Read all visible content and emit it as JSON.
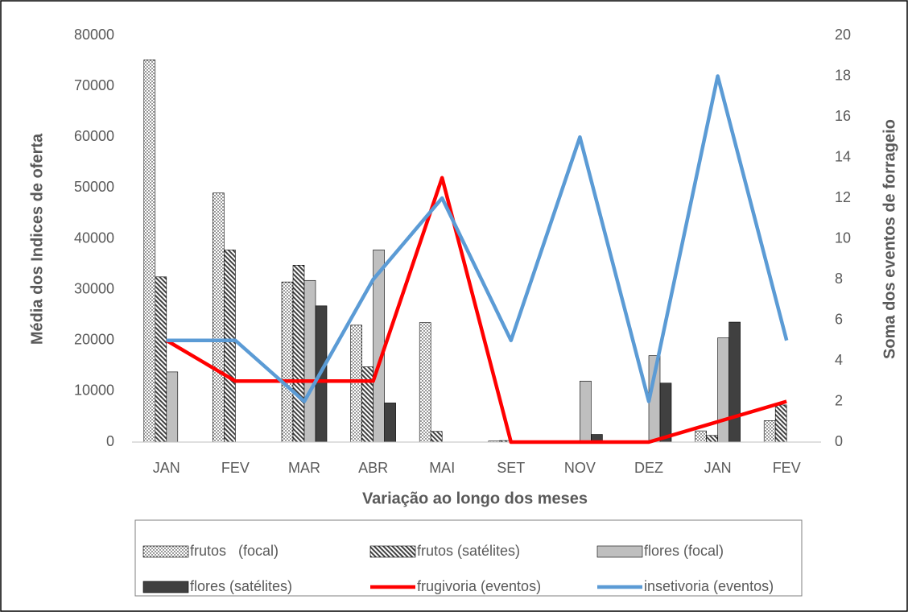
{
  "chart_data": {
    "type": "bar-line",
    "x_label": "Variação ao longo dos meses",
    "y_label": "Média dos Indices de oferta",
    "y2_label": "Soma dos eventos de forrageio",
    "categories": [
      "JAN",
      "FEV",
      "MAR",
      "ABR",
      "MAI",
      "SET",
      "NOV",
      "DEZ",
      "JAN",
      "FEV"
    ],
    "ylim": [
      0,
      80000
    ],
    "yticks": [
      0,
      10000,
      20000,
      30000,
      40000,
      50000,
      60000,
      70000,
      80000
    ],
    "y2lim": [
      0,
      20
    ],
    "y2ticks": [
      0,
      2,
      4,
      6,
      8,
      10,
      12,
      14,
      16,
      18,
      20
    ],
    "grid": false,
    "series": [
      {
        "name": "frutos   (focal)",
        "type": "bar",
        "pattern": "dots",
        "color": "#ffffff",
        "values": [
          75200,
          49000,
          31500,
          23000,
          23500,
          200,
          0,
          0,
          2200,
          4200
        ]
      },
      {
        "name": "frutos (satélites)",
        "type": "bar",
        "pattern": "hatch",
        "color": "#595959",
        "values": [
          32500,
          37800,
          34800,
          14800,
          2100,
          300,
          0,
          0,
          1300,
          7300
        ]
      },
      {
        "name": "flores (focal)",
        "type": "bar",
        "pattern": "solid",
        "color": "#bfbfbf",
        "values": [
          13800,
          0,
          31800,
          37800,
          0,
          0,
          12000,
          17000,
          20500,
          0
        ]
      },
      {
        "name": "flores (satélites)",
        "type": "bar",
        "pattern": "solid",
        "color": "#404040",
        "values": [
          0,
          0,
          26800,
          7700,
          0,
          0,
          1500,
          11600,
          23600,
          0
        ]
      },
      {
        "name": "frugivoria (eventos)",
        "type": "line",
        "axis": "y2",
        "color": "#ff0000",
        "values": [
          5,
          3,
          3,
          3,
          13,
          0,
          0,
          0,
          1,
          2
        ]
      },
      {
        "name": "insetivoria (eventos)",
        "type": "line",
        "axis": "y2",
        "color": "#5b9bd5",
        "values": [
          5,
          5,
          2,
          8,
          12,
          5,
          15,
          2,
          18,
          5
        ]
      }
    ]
  }
}
